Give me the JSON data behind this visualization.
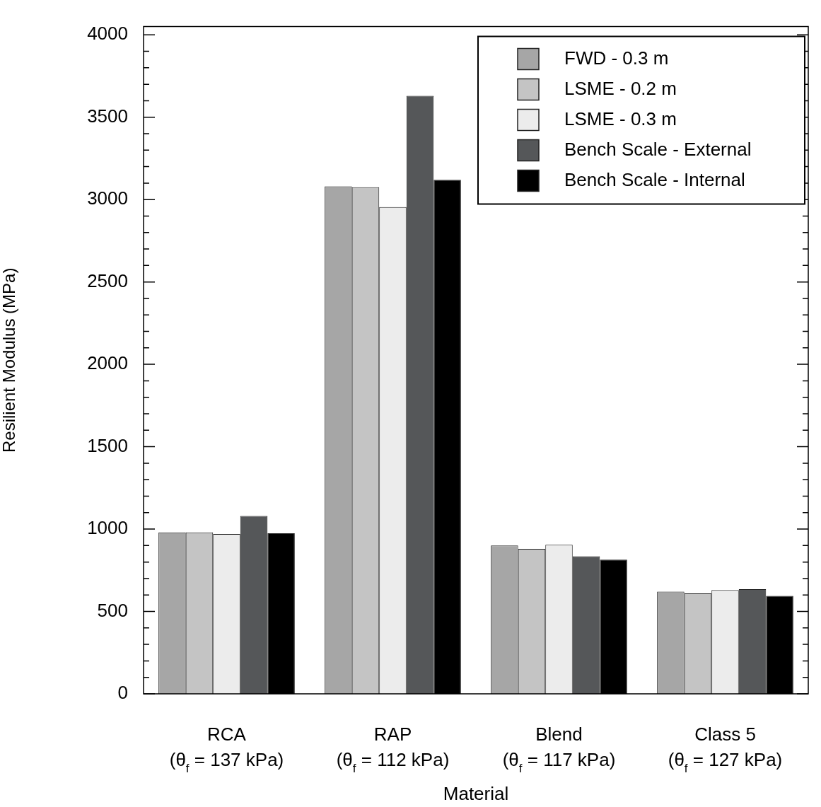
{
  "chart_data": {
    "type": "bar",
    "xlabel": "Material",
    "ylabel": "Resilient Modulus (MPa)",
    "categories": [
      "RCA\n(θ$_{f}$ = 137 kPa)",
      "RAP\n(θ$_{f}$ = 112 kPa)",
      "Blend\n(θ$_{f}$ = 117 kPa)",
      "Class 5\n(θ$_{f}$ = 127 kPa)"
    ],
    "series": [
      {
        "name": "FWD - 0.3 m",
        "color": "#a6a6a6",
        "values": [
          980,
          3080,
          900,
          620
        ]
      },
      {
        "name": "LSME - 0.2 m",
        "color": "#c4c4c4",
        "values": [
          980,
          3075,
          880,
          610
        ]
      },
      {
        "name": "LSME - 0.3 m",
        "color": "#ececec",
        "values": [
          970,
          2955,
          905,
          630
        ]
      },
      {
        "name": "Bench Scale - External",
        "color": "#555759",
        "values": [
          1080,
          3630,
          835,
          635
        ]
      },
      {
        "name": "Bench Scale - Internal",
        "color": "#000000",
        "values": [
          975,
          3120,
          815,
          595
        ]
      }
    ],
    "ylim": [
      0,
      4050
    ],
    "yticks": [
      0,
      {
        "value": 100,
        "label": null
      },
      {
        "value": 200,
        "label": null
      },
      {
        "value": 300,
        "label": null
      },
      {
        "value": 400,
        "label": null
      },
      500,
      {
        "value": 600,
        "label": null
      },
      {
        "value": 700,
        "label": null
      },
      {
        "value": 800,
        "label": null
      },
      {
        "value": 900,
        "label": null
      },
      1000,
      {
        "value": 1100,
        "label": null
      },
      {
        "value": 1200,
        "label": null
      },
      {
        "value": 1300,
        "label": null
      },
      {
        "value": 1400,
        "label": null
      },
      1500,
      {
        "value": 1600,
        "label": null
      },
      {
        "value": 1700,
        "label": null
      },
      {
        "value": 1800,
        "label": null
      },
      {
        "value": 1900,
        "label": null
      },
      2000,
      {
        "value": 2100,
        "label": null
      },
      {
        "value": 2200,
        "label": null
      },
      {
        "value": 2300,
        "label": null
      },
      {
        "value": 2400,
        "label": null
      },
      2500,
      {
        "value": 2600,
        "label": null
      },
      {
        "value": 2700,
        "label": null
      },
      {
        "value": 2800,
        "label": null
      },
      {
        "value": 2900,
        "label": null
      },
      3000,
      {
        "value": 3100,
        "label": null
      },
      {
        "value": 3200,
        "label": null
      },
      {
        "value": 3300,
        "label": null
      },
      {
        "value": 3400,
        "label": null
      },
      3500,
      {
        "value": 3600,
        "label": null
      },
      {
        "value": 3700,
        "label": null
      },
      {
        "value": 3800,
        "label": null
      },
      {
        "value": 3900,
        "label": null
      },
      4000
    ],
    "grid": false,
    "legend": "top right"
  }
}
